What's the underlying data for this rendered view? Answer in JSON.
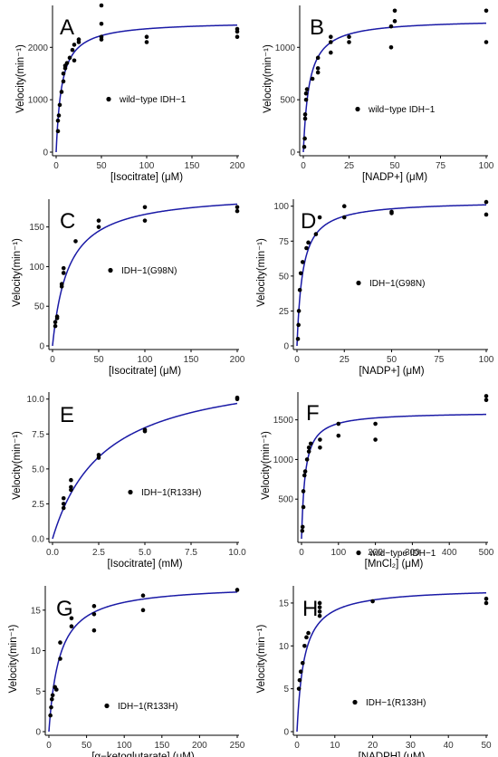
{
  "chart_data": [
    {
      "type": "scatter",
      "panel": "A",
      "legend": "wild−type IDH−1",
      "xlabel": "[Isocitrate] (μM)",
      "ylabel": "Velocity(min⁻¹)",
      "xlim": [
        0,
        200
      ],
      "ylim": [
        0,
        2800
      ],
      "xticks": [
        0,
        50,
        100,
        150,
        200
      ],
      "yticks": [
        0,
        1000,
        2000
      ],
      "fit": {
        "vmax": 2500,
        "km": 6.2
      },
      "points": [
        [
          2,
          400
        ],
        [
          2,
          600
        ],
        [
          3,
          700
        ],
        [
          4,
          900
        ],
        [
          6,
          1150
        ],
        [
          8,
          1350
        ],
        [
          8,
          1500
        ],
        [
          10,
          1600
        ],
        [
          10,
          1650
        ],
        [
          12,
          1700
        ],
        [
          15,
          1800
        ],
        [
          18,
          1950
        ],
        [
          20,
          2050
        ],
        [
          20,
          1750
        ],
        [
          25,
          2100
        ],
        [
          25,
          2150
        ],
        [
          50,
          2200
        ],
        [
          50,
          2150
        ],
        [
          50,
          2450
        ],
        [
          50,
          2800
        ],
        [
          100,
          2100
        ],
        [
          100,
          2200
        ],
        [
          200,
          2200
        ],
        [
          200,
          2300
        ],
        [
          200,
          2350
        ]
      ]
    },
    {
      "type": "scatter",
      "panel": "B",
      "legend": "wild−type IDH−1",
      "xlabel": "[NADP+] (μM)",
      "ylabel": "Velocity(min⁻¹)",
      "xlim": [
        0,
        100
      ],
      "ylim": [
        0,
        1400
      ],
      "xticks": [
        0,
        25,
        50,
        75,
        100
      ],
      "yticks": [
        0,
        500,
        1000
      ],
      "fit": {
        "vmax": 1270,
        "km": 3.2
      },
      "points": [
        [
          0.5,
          50
        ],
        [
          0.8,
          130
        ],
        [
          1,
          320
        ],
        [
          1,
          360
        ],
        [
          1.5,
          500
        ],
        [
          1.5,
          560
        ],
        [
          2,
          600
        ],
        [
          5,
          700
        ],
        [
          8,
          800
        ],
        [
          8,
          760
        ],
        [
          8,
          900
        ],
        [
          15,
          950
        ],
        [
          15,
          1050
        ],
        [
          15,
          1100
        ],
        [
          25,
          1050
        ],
        [
          25,
          1100
        ],
        [
          48,
          1000
        ],
        [
          48,
          1200
        ],
        [
          50,
          1250
        ],
        [
          50,
          1350
        ],
        [
          100,
          1050
        ],
        [
          100,
          1350
        ]
      ]
    },
    {
      "type": "scatter",
      "panel": "C",
      "legend": "IDH−1(G98N)",
      "xlabel": "[Isocitrate] (μM)",
      "ylabel": "Velocity(min⁻¹)",
      "xlim": [
        0,
        200
      ],
      "ylim": [
        0,
        185
      ],
      "xticks": [
        0,
        50,
        100,
        150,
        200
      ],
      "yticks": [
        0,
        50,
        100,
        150
      ],
      "fit": {
        "vmax": 194,
        "km": 17
      },
      "points": [
        [
          3,
          25
        ],
        [
          3,
          30
        ],
        [
          5,
          35
        ],
        [
          5,
          37
        ],
        [
          10,
          75
        ],
        [
          10,
          78
        ],
        [
          12,
          92
        ],
        [
          12,
          98
        ],
        [
          25,
          132
        ],
        [
          50,
          150
        ],
        [
          50,
          158
        ],
        [
          100,
          158
        ],
        [
          100,
          175
        ],
        [
          200,
          170
        ],
        [
          200,
          175
        ]
      ]
    },
    {
      "type": "scatter",
      "panel": "D",
      "legend": "IDH−1(G98N)",
      "xlabel": "[NADP+] (μM)",
      "ylabel": "Velocity(min⁻¹)",
      "xlim": [
        0,
        100
      ],
      "ylim": [
        0,
        105
      ],
      "xticks": [
        0,
        25,
        50,
        75,
        100
      ],
      "yticks": [
        0,
        25,
        50,
        75,
        100
      ],
      "fit": {
        "vmax": 104,
        "km": 3.0
      },
      "points": [
        [
          0.5,
          5
        ],
        [
          0.8,
          15
        ],
        [
          1,
          25
        ],
        [
          1.5,
          40
        ],
        [
          2,
          52
        ],
        [
          3,
          60
        ],
        [
          5,
          70
        ],
        [
          6,
          74
        ],
        [
          10,
          80
        ],
        [
          12,
          92
        ],
        [
          25,
          92
        ],
        [
          25,
          100
        ],
        [
          50,
          95
        ],
        [
          50,
          96
        ],
        [
          100,
          94
        ],
        [
          100,
          103
        ]
      ]
    },
    {
      "type": "scatter",
      "panel": "E",
      "legend": "IDH−1(R133H)",
      "xlabel": "[Isocitrate] (mM)",
      "ylabel": "Velocity(min⁻¹)",
      "xlim": [
        0,
        10
      ],
      "ylim": [
        0,
        10.5
      ],
      "xticks": [
        0,
        2.5,
        5,
        7.5,
        10
      ],
      "xticklabels": [
        "0.0",
        "2.5",
        "5.0",
        "7.5",
        "10.0"
      ],
      "yticks": [
        0,
        2.5,
        5,
        7.5,
        10
      ],
      "yticklabels": [
        "0.0",
        "2.5",
        "5.0",
        "7.5",
        "10.0"
      ],
      "fit": {
        "vmax": 12.4,
        "km": 2.8
      },
      "points": [
        [
          0.6,
          2.2
        ],
        [
          0.6,
          2.5
        ],
        [
          0.6,
          2.9
        ],
        [
          1,
          3.5
        ],
        [
          1,
          3.7
        ],
        [
          1,
          4.2
        ],
        [
          2.5,
          5.8
        ],
        [
          2.5,
          6.0
        ],
        [
          5,
          7.7
        ],
        [
          5,
          7.8
        ],
        [
          10,
          10
        ],
        [
          10,
          10.1
        ]
      ]
    },
    {
      "type": "scatter",
      "panel": "F",
      "legend": "wild−type IDH−1",
      "xlabel": "[MnCl₂] (μM)",
      "ylabel": "Velocity(min⁻¹)",
      "xlim": [
        0,
        500
      ],
      "ylim": [
        0,
        1850
      ],
      "xticks": [
        0,
        100,
        200,
        300,
        400,
        500
      ],
      "yticks": [
        500,
        1000,
        1500
      ],
      "fit": {
        "vmax": 1600,
        "km": 10
      },
      "points": [
        [
          2,
          100
        ],
        [
          3,
          150
        ],
        [
          5,
          400
        ],
        [
          5,
          600
        ],
        [
          8,
          800
        ],
        [
          10,
          850
        ],
        [
          15,
          1000
        ],
        [
          20,
          1100
        ],
        [
          20,
          1150
        ],
        [
          25,
          1200
        ],
        [
          50,
          1250
        ],
        [
          50,
          1150
        ],
        [
          100,
          1300
        ],
        [
          100,
          1450
        ],
        [
          200,
          1250
        ],
        [
          200,
          1450
        ],
        [
          500,
          1750
        ],
        [
          500,
          1800
        ]
      ]
    },
    {
      "type": "scatter",
      "panel": "G",
      "legend": "IDH−1(R133H)",
      "xlabel": "[α−ketoglutarate] (μM)",
      "ylabel": "Velocity(min⁻¹)",
      "xlim": [
        0,
        250
      ],
      "ylim": [
        0,
        18
      ],
      "xticks": [
        0,
        50,
        100,
        150,
        200,
        250
      ],
      "yticks": [
        0,
        5,
        10,
        15
      ],
      "fit": {
        "vmax": 18.2,
        "km": 14
      },
      "points": [
        [
          2,
          2
        ],
        [
          3,
          3
        ],
        [
          4,
          4
        ],
        [
          5,
          4.5
        ],
        [
          8,
          5.5
        ],
        [
          10,
          5.2
        ],
        [
          15,
          9
        ],
        [
          15,
          11
        ],
        [
          30,
          13
        ],
        [
          30,
          14
        ],
        [
          60,
          12.5
        ],
        [
          60,
          14.5
        ],
        [
          60,
          15.5
        ],
        [
          125,
          15
        ],
        [
          125,
          16.8
        ],
        [
          250,
          17.5
        ]
      ]
    },
    {
      "type": "scatter",
      "panel": "H",
      "legend": "IDH−1(R133H)",
      "xlabel": "[NADPH] (μM)",
      "ylabel": "Velocity(min⁻¹)",
      "xlim": [
        0,
        50
      ],
      "ylim": [
        0,
        17
      ],
      "xticks": [
        0,
        10,
        20,
        30,
        40,
        50
      ],
      "yticks": [
        0,
        5,
        10,
        15
      ],
      "fit": {
        "vmax": 16.8,
        "km": 1.9
      },
      "points": [
        [
          0.5,
          5
        ],
        [
          0.7,
          6
        ],
        [
          1,
          7
        ],
        [
          1.5,
          8
        ],
        [
          2,
          10
        ],
        [
          2.5,
          11
        ],
        [
          3,
          11.5
        ],
        [
          6,
          13.5
        ],
        [
          6,
          14
        ],
        [
          6,
          14.5
        ],
        [
          6,
          15
        ],
        [
          20,
          15.2
        ],
        [
          50,
          15
        ],
        [
          50,
          15.5
        ]
      ]
    }
  ]
}
